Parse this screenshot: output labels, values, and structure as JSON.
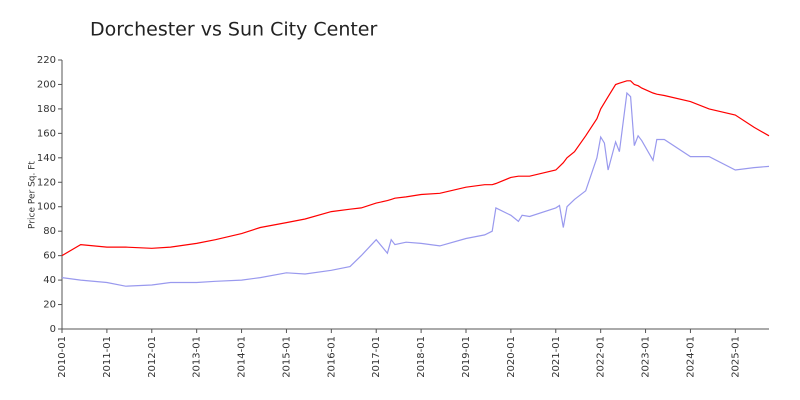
{
  "chart_data": {
    "type": "line",
    "title": "Dorchester vs Sun City Center",
    "ylabel": "Price Per Sq. Ft",
    "x": [
      "2010-01",
      "2010-06",
      "2011-01",
      "2011-06",
      "2012-01",
      "2012-06",
      "2013-01",
      "2013-06",
      "2014-01",
      "2014-06",
      "2015-01",
      "2015-06",
      "2016-01",
      "2016-06",
      "2016-09",
      "2017-01",
      "2017-04",
      "2017-05",
      "2017-06",
      "2017-09",
      "2018-01",
      "2018-06",
      "2019-01",
      "2019-06",
      "2019-08",
      "2019-09",
      "2020-01",
      "2020-03",
      "2020-04",
      "2020-06",
      "2021-01",
      "2021-02",
      "2021-03",
      "2021-04",
      "2021-06",
      "2021-09",
      "2021-12",
      "2022-01",
      "2022-02",
      "2022-03",
      "2022-05",
      "2022-06",
      "2022-08",
      "2022-09",
      "2022-10",
      "2022-11",
      "2022-12",
      "2023-03",
      "2023-04",
      "2023-06",
      "2024-01",
      "2024-06",
      "2025-01",
      "2025-06",
      "2025-10"
    ],
    "series": [
      {
        "color": "#ff0000",
        "values": [
          60,
          69,
          67,
          67,
          66,
          67,
          70,
          73,
          78,
          83,
          87,
          90,
          96,
          98,
          99,
          103,
          105,
          106,
          107,
          108,
          110,
          111,
          116,
          118,
          118,
          119,
          124,
          125,
          125,
          125,
          130,
          133,
          136,
          140,
          145,
          158,
          172,
          180,
          185,
          190,
          200,
          201,
          203,
          203,
          200,
          199,
          197,
          193,
          192,
          191,
          186,
          180,
          175,
          165,
          158
        ]
      },
      {
        "color": "#9999ee",
        "values": [
          42,
          40,
          38,
          35,
          36,
          38,
          38,
          39,
          40,
          42,
          46,
          45,
          48,
          51,
          60,
          73,
          62,
          73,
          69,
          71,
          70,
          68,
          74,
          77,
          80,
          99,
          93,
          88,
          93,
          92,
          99,
          101,
          83,
          100,
          106,
          113,
          140,
          157,
          152,
          130,
          153,
          145,
          193,
          190,
          150,
          158,
          154,
          138,
          155,
          155,
          141,
          141,
          130,
          132,
          133
        ]
      }
    ],
    "xlim": [
      "2010-01",
      "2025-10"
    ],
    "xticks": [
      "2010-01",
      "2011-01",
      "2012-01",
      "2013-01",
      "2014-01",
      "2015-01",
      "2016-01",
      "2017-01",
      "2018-01",
      "2019-01",
      "2020-01",
      "2021-01",
      "2022-01",
      "2023-01",
      "2024-01",
      "2025-01"
    ],
    "ylim": [
      0,
      220
    ],
    "yticks": [
      0,
      20,
      40,
      60,
      80,
      100,
      120,
      140,
      160,
      180,
      200,
      220
    ],
    "grid": false
  }
}
